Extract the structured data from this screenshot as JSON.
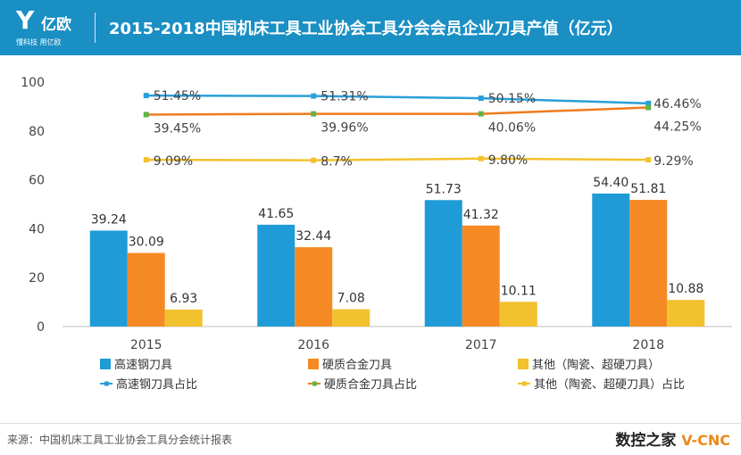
{
  "header": {
    "logo_glyph": "Y",
    "logo_name": "亿欧",
    "logo_slogan": "懂科技 用亿欧",
    "title": "2015-2018中国机床工具工业协会工具分会会员企业刀具产值（亿元）"
  },
  "footer": {
    "source": "来源：中国机床工具工业协会工具分会统计报表",
    "watermark_main": "数控之家",
    "watermark_sub": "V-CNC"
  },
  "colors": {
    "series1": "#1f9bd7",
    "series2": "#f58a24",
    "series3": "#f2c12e",
    "line1": "#2a9fd8",
    "line2": "#f07b1e",
    "line3": "#f2c12e",
    "marker2": "#5fb548",
    "axis_text": "#444444",
    "header": "#1a8fc4"
  },
  "chart_data": {
    "type": "bar",
    "title": "2015-2018中国机床工具工业协会工具分会会员企业刀具产值（亿元）",
    "categories": [
      "2015",
      "2016",
      "2017",
      "2018"
    ],
    "ylim": [
      0,
      100
    ],
    "yticks": [
      "0",
      "20",
      "40",
      "60",
      "80",
      "100"
    ],
    "grid": false,
    "series": [
      {
        "name": "高速钢刀具",
        "values": [
          39.24,
          41.65,
          51.73,
          54.4
        ],
        "labels": [
          "39.24",
          "41.65",
          "51.73",
          "54.40"
        ]
      },
      {
        "name": "硬质合金刀具",
        "values": [
          30.09,
          32.44,
          41.32,
          51.81
        ],
        "labels": [
          "30.09",
          "32.44",
          "41.32",
          "51.81"
        ]
      },
      {
        "name": "其他（陶瓷、超硬刀具）",
        "values": [
          6.93,
          7.08,
          10.11,
          10.88
        ],
        "labels": [
          "6.93",
          "7.08",
          "10.11",
          "10.88"
        ]
      }
    ],
    "line_series": [
      {
        "name": "高速钢刀具占比",
        "values": [
          94.5,
          94.3,
          93.4,
          91.3
        ],
        "labels": [
          "51.45%",
          "51.31%",
          "50.15%",
          "46.46%"
        ]
      },
      {
        "name": "硬质合金刀具占比",
        "values": [
          86.7,
          87.0,
          87.0,
          89.6
        ],
        "labels": [
          "39.45%",
          "39.96%",
          "40.06%",
          "44.25%"
        ]
      },
      {
        "name": "其他（陶瓷、超硬刀具）占比",
        "values": [
          68.2,
          68.0,
          68.7,
          68.2
        ],
        "labels": [
          "9.09%",
          "8.7%",
          "9.80%",
          "9.29%"
        ]
      }
    ],
    "legend_position": "bottom"
  }
}
